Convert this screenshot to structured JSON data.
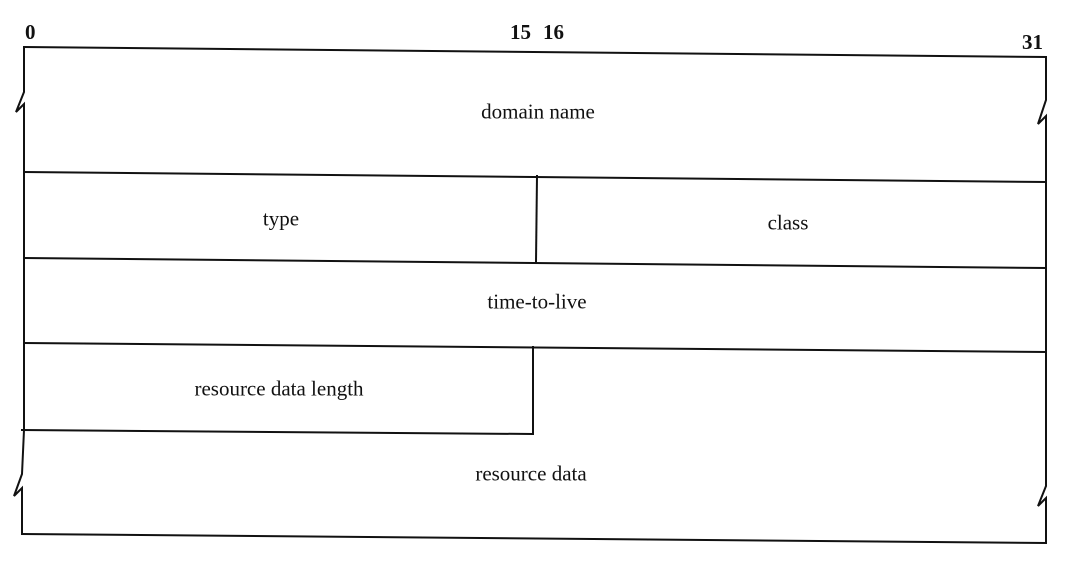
{
  "bit_positions": {
    "start": "0",
    "mid_end": "15",
    "mid_start": "16",
    "end": "31"
  },
  "fields": {
    "domain_name": "domain name",
    "type": "type",
    "class": "class",
    "time_to_live": "time-to-live",
    "resource_data_length": "resource data length",
    "resource_data": "resource data"
  }
}
